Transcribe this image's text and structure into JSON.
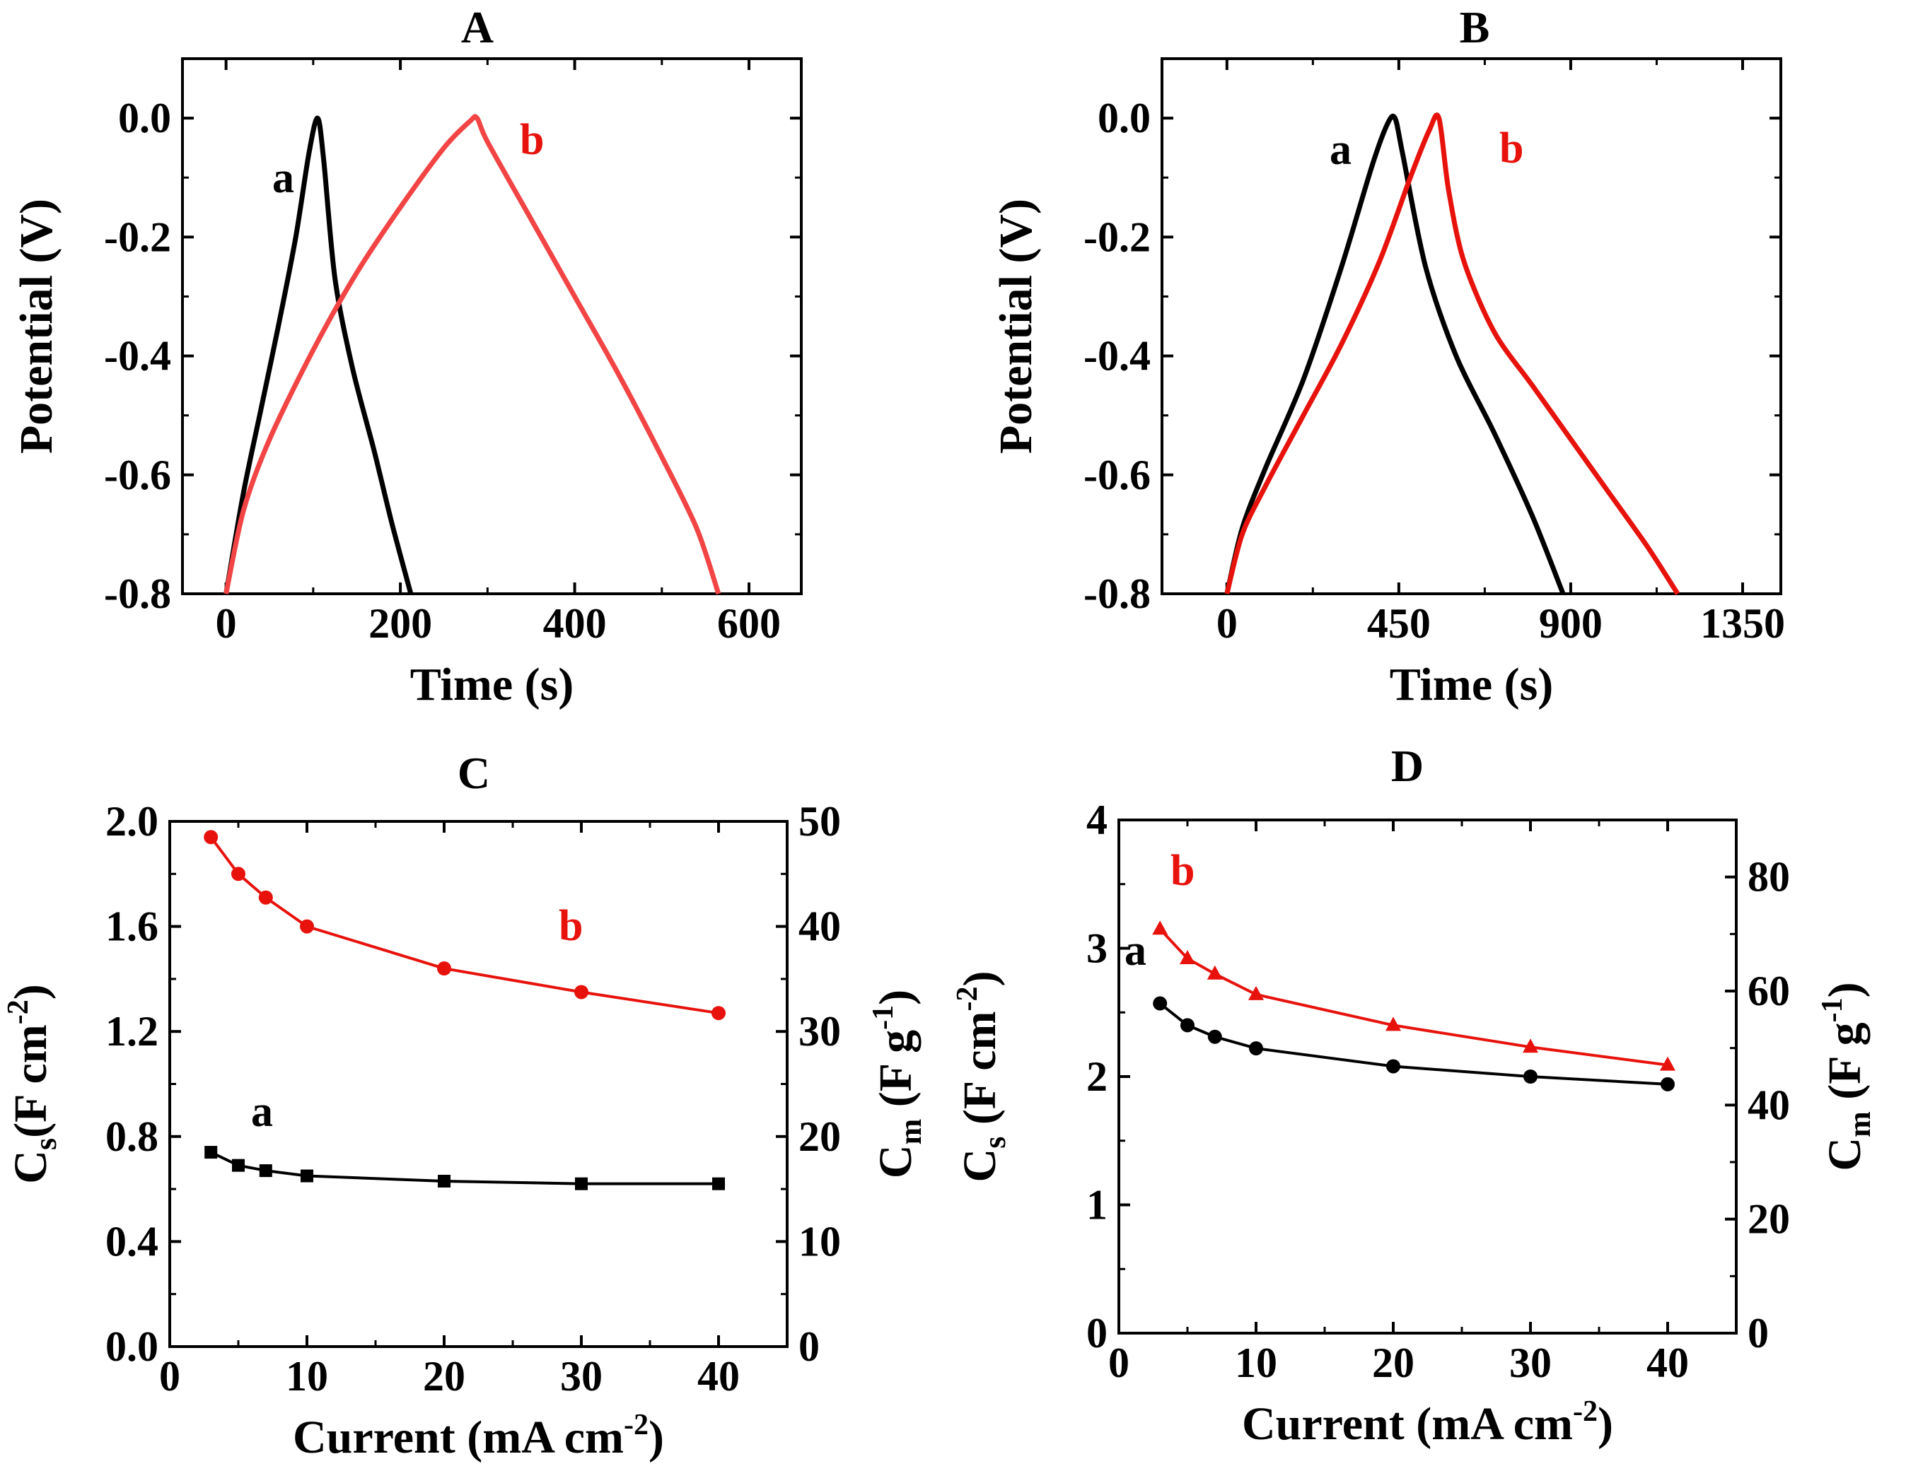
{
  "chart_data": [
    {
      "panel": "A",
      "type": "line",
      "title": "A",
      "xlabel": "Time (s)",
      "ylabel": "Potential (V)",
      "xlim": [
        -50,
        660
      ],
      "ylim": [
        -0.8,
        0.1
      ],
      "xticks": [
        0,
        200,
        400,
        600
      ],
      "yticks": [
        -0.8,
        -0.6,
        -0.4,
        -0.2,
        0.0
      ],
      "xtick_labels": [
        "0",
        "200",
        "400",
        "600"
      ],
      "ytick_labels": [
        "-0.8",
        "-0.6",
        "-0.4",
        "-0.2",
        "0.0"
      ],
      "series": [
        {
          "name": "a",
          "color": "#000000",
          "x": [
            0,
            20,
            40,
            60,
            80,
            95,
            105,
            112,
            125,
            145,
            170,
            190,
            212
          ],
          "y": [
            -0.8,
            -0.63,
            -0.49,
            -0.35,
            -0.2,
            -0.06,
            0.0,
            -0.07,
            -0.27,
            -0.42,
            -0.56,
            -0.68,
            -0.8
          ]
        },
        {
          "name": "b",
          "color": "#f24444",
          "x": [
            0,
            20,
            50,
            100,
            150,
            200,
            250,
            280,
            288,
            300,
            350,
            400,
            450,
            500,
            540,
            565
          ],
          "y": [
            -0.8,
            -0.66,
            -0.54,
            -0.39,
            -0.26,
            -0.15,
            -0.05,
            -0.005,
            0.0,
            -0.04,
            -0.17,
            -0.3,
            -0.43,
            -0.57,
            -0.69,
            -0.8
          ]
        }
      ],
      "annotations": [
        {
          "text": "a",
          "color": "#000000"
        },
        {
          "text": "b",
          "color": "#e8120c"
        }
      ]
    },
    {
      "panel": "B",
      "type": "line",
      "title": "B",
      "xlabel": "Time (s)",
      "ylabel": "Potential (V)",
      "xlim": [
        -170,
        1450
      ],
      "ylim": [
        -0.8,
        0.1
      ],
      "xticks": [
        0,
        450,
        900,
        1350
      ],
      "yticks": [
        -0.8,
        -0.6,
        -0.4,
        -0.2,
        0.0
      ],
      "xtick_labels": [
        "0",
        "450",
        "900",
        "1350"
      ],
      "ytick_labels": [
        "-0.8",
        "-0.6",
        "-0.4",
        "-0.2",
        "0.0"
      ],
      "series": [
        {
          "name": "a",
          "color": "#000000",
          "x": [
            0,
            40,
            100,
            200,
            300,
            380,
            420,
            440,
            460,
            520,
            600,
            700,
            800,
            880
          ],
          "y": [
            -0.8,
            -0.69,
            -0.59,
            -0.44,
            -0.25,
            -0.08,
            -0.01,
            0.0,
            -0.06,
            -0.25,
            -0.4,
            -0.53,
            -0.67,
            -0.8
          ]
        },
        {
          "name": "b",
          "color": "#e8120c",
          "x": [
            0,
            40,
            100,
            200,
            300,
            400,
            480,
            530,
            555,
            580,
            620,
            700,
            800,
            900,
            1000,
            1100,
            1180
          ],
          "y": [
            -0.8,
            -0.7,
            -0.62,
            -0.5,
            -0.38,
            -0.24,
            -0.1,
            -0.02,
            0.0,
            -0.12,
            -0.24,
            -0.36,
            -0.45,
            -0.54,
            -0.63,
            -0.72,
            -0.8
          ]
        }
      ],
      "annotations": [
        {
          "text": "a",
          "color": "#000000"
        },
        {
          "text": "b",
          "color": "#e8120c"
        }
      ]
    },
    {
      "panel": "C",
      "type": "line",
      "title": "C",
      "xlabel_main": "Current (mA cm",
      "xlabel_sup": "-2",
      "xlabel_end": ")",
      "ylabel_left": {
        "main": "C",
        "sub": "s",
        "rest": "(F cm",
        "sup": "-2",
        "end": ")"
      },
      "ylabel_right": {
        "main": "C",
        "sub": "m",
        "rest": " (F g",
        "sup": "-1",
        "end": ")"
      },
      "xlim": [
        0,
        45
      ],
      "ylim": [
        0.0,
        2.0
      ],
      "y2lim": [
        0,
        50
      ],
      "xticks": [
        0,
        10,
        20,
        30,
        40
      ],
      "yticks": [
        0.0,
        0.4,
        0.8,
        1.2,
        1.6,
        2.0
      ],
      "y2ticks": [
        0,
        10,
        20,
        30,
        40,
        50
      ],
      "xtick_labels": [
        "0",
        "10",
        "20",
        "30",
        "40"
      ],
      "ytick_labels": [
        "0.0",
        "0.4",
        "0.8",
        "1.2",
        "1.6",
        "2.0"
      ],
      "y2tick_labels": [
        "0",
        "10",
        "20",
        "30",
        "40",
        "50"
      ],
      "series": [
        {
          "name": "a",
          "color": "#000000",
          "marker": "square",
          "x": [
            3,
            5,
            7,
            10,
            20,
            30,
            40
          ],
          "y": [
            0.74,
            0.69,
            0.67,
            0.65,
            0.63,
            0.62,
            0.62
          ]
        },
        {
          "name": "b",
          "color": "#e8120c",
          "marker": "circle",
          "x": [
            3,
            5,
            7,
            10,
            20,
            30,
            40
          ],
          "y": [
            1.94,
            1.8,
            1.71,
            1.6,
            1.44,
            1.35,
            1.27
          ]
        }
      ],
      "annotations": [
        {
          "text": "a",
          "color": "#000000"
        },
        {
          "text": "b",
          "color": "#e8120c"
        }
      ]
    },
    {
      "panel": "D",
      "type": "line",
      "title": "D",
      "xlabel_main": "Current (mA cm",
      "xlabel_sup": "-2",
      "xlabel_end": ")",
      "ylabel_left": {
        "main": "C",
        "sub": "s",
        "rest": " (F cm",
        "sup": "-2",
        "end": ")"
      },
      "ylabel_right": {
        "main": "C",
        "sub": "m",
        "rest": " (F g",
        "sup": "-1",
        "end": ")"
      },
      "xlim": [
        0,
        45
      ],
      "ylim": [
        0,
        4
      ],
      "y2lim": [
        0,
        90
      ],
      "xticks": [
        0,
        10,
        20,
        30,
        40
      ],
      "yticks": [
        0,
        1,
        2,
        3,
        4
      ],
      "y2ticks": [
        0,
        20,
        40,
        60,
        80
      ],
      "xtick_labels": [
        "0",
        "10",
        "20",
        "30",
        "40"
      ],
      "ytick_labels": [
        "0",
        "1",
        "2",
        "3",
        "4"
      ],
      "y2tick_labels": [
        "0",
        "20",
        "40",
        "60",
        "80"
      ],
      "series": [
        {
          "name": "a",
          "color": "#000000",
          "marker": "circle",
          "x": [
            3,
            5,
            7,
            10,
            20,
            30,
            40
          ],
          "y": [
            2.57,
            2.4,
            2.31,
            2.22,
            2.08,
            2.0,
            1.94
          ]
        },
        {
          "name": "b",
          "color": "#e8120c",
          "marker": "triangle",
          "x": [
            3,
            5,
            7,
            10,
            20,
            30,
            40
          ],
          "y": [
            3.15,
            2.92,
            2.8,
            2.64,
            2.4,
            2.23,
            2.09
          ]
        }
      ],
      "annotations": [
        {
          "text": "a",
          "color": "#000000"
        },
        {
          "text": "b",
          "color": "#e8120c"
        }
      ]
    }
  ]
}
